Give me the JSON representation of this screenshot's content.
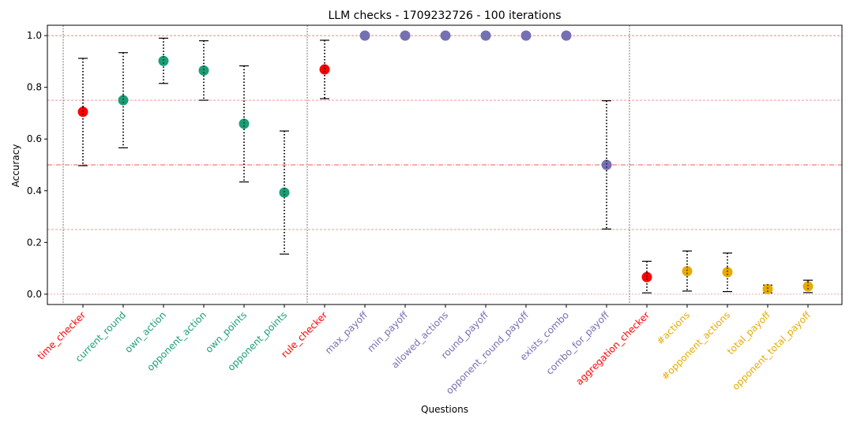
{
  "chart_data": {
    "type": "scatter",
    "title": "LLM checks - 1709232726 - 100 iterations",
    "xlabel": "Questions",
    "ylabel": "Accuracy",
    "ylim": [
      -0.04,
      1.04
    ],
    "yticks": [
      "0.0",
      "0.2",
      "0.4",
      "0.6",
      "0.8",
      "1.0"
    ],
    "grid": false,
    "reference_lines": [
      0.25,
      0.5,
      0.75,
      1.0
    ],
    "group_colors": {
      "checker": "#ff0000",
      "time": "#1b9e77",
      "rule": "#7570b3",
      "aggregation": "#e6ab02"
    },
    "points": [
      {
        "label": "time_checker",
        "group": "checker",
        "value": 0.705,
        "err_low": 0.497,
        "err_high": 0.912
      },
      {
        "label": "current_round",
        "group": "time",
        "value": 0.75,
        "err_low": 0.566,
        "err_high": 0.934
      },
      {
        "label": "own_action",
        "group": "time",
        "value": 0.902,
        "err_low": 0.815,
        "err_high": 0.99
      },
      {
        "label": "opponent_action",
        "group": "time",
        "value": 0.865,
        "err_low": 0.75,
        "err_high": 0.98
      },
      {
        "label": "own_points",
        "group": "time",
        "value": 0.659,
        "err_low": 0.434,
        "err_high": 0.883
      },
      {
        "label": "opponent_points",
        "group": "time",
        "value": 0.393,
        "err_low": 0.155,
        "err_high": 0.631
      },
      {
        "label": "rule_checker",
        "group": "checker",
        "value": 0.869,
        "err_low": 0.756,
        "err_high": 0.982
      },
      {
        "label": "max_payoff",
        "group": "rule",
        "value": 1.0,
        "err_low": 1.0,
        "err_high": 1.0
      },
      {
        "label": "min_payoff",
        "group": "rule",
        "value": 1.0,
        "err_low": 1.0,
        "err_high": 1.0
      },
      {
        "label": "allowed_actions",
        "group": "rule",
        "value": 1.0,
        "err_low": 1.0,
        "err_high": 1.0
      },
      {
        "label": "round_payoff",
        "group": "rule",
        "value": 1.0,
        "err_low": 1.0,
        "err_high": 1.0
      },
      {
        "label": "opponent_round_payoff",
        "group": "rule",
        "value": 1.0,
        "err_low": 1.0,
        "err_high": 1.0
      },
      {
        "label": "exists_combo",
        "group": "rule",
        "value": 1.0,
        "err_low": 1.0,
        "err_high": 1.0
      },
      {
        "label": "combo_for_payoff",
        "group": "rule",
        "value": 0.5,
        "err_low": 0.252,
        "err_high": 0.748
      },
      {
        "label": "aggregation_checker",
        "group": "checker",
        "value": 0.066,
        "err_low": 0.005,
        "err_high": 0.127
      },
      {
        "label": "#actions",
        "group": "aggregation",
        "value": 0.089,
        "err_low": 0.012,
        "err_high": 0.167
      },
      {
        "label": "#opponent_actions",
        "group": "aggregation",
        "value": 0.085,
        "err_low": 0.01,
        "err_high": 0.159
      },
      {
        "label": "total_payoff",
        "group": "aggregation",
        "value": 0.02,
        "err_low": 0.005,
        "err_high": 0.035
      },
      {
        "label": "opponent_total_payoff",
        "group": "aggregation",
        "value": 0.03,
        "err_low": 0.006,
        "err_high": 0.054
      }
    ],
    "group_separators_after": [
      0,
      6,
      14
    ]
  }
}
